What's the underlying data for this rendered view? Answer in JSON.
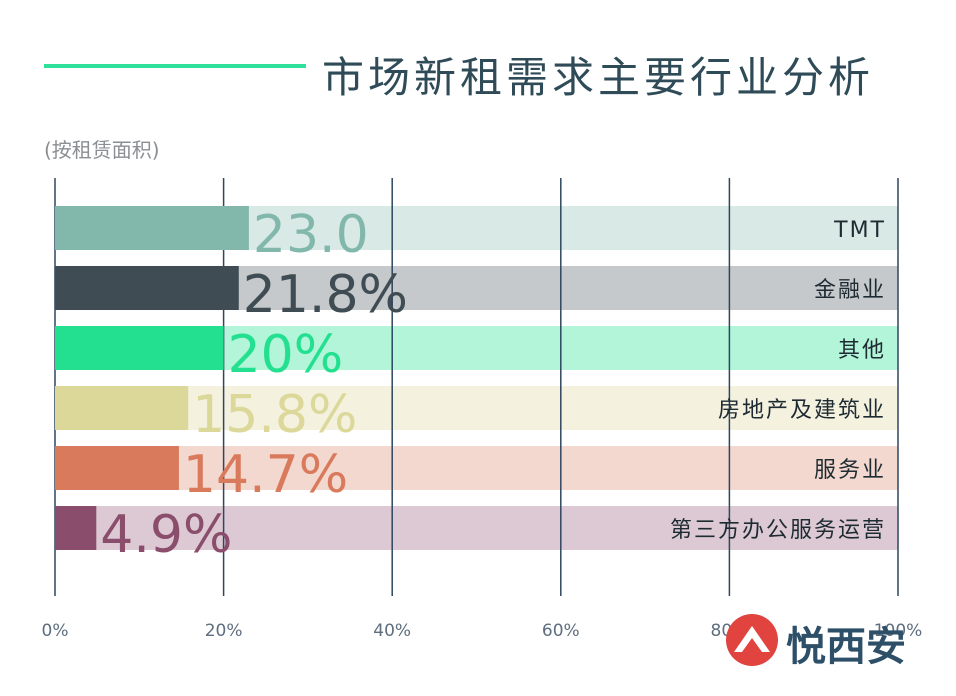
{
  "title": "市场新租需求主要行业分析",
  "subtitle": "(按租赁面积)",
  "watermark": {
    "text": "悦西安"
  },
  "colors": {
    "title_line": "#2fe09a",
    "grid": "#2e4660",
    "axis_text": "#5e6e7e"
  },
  "chart_data": {
    "type": "bar",
    "orientation": "horizontal",
    "xlim": [
      0,
      100
    ],
    "xticks": [
      "0%",
      "20%",
      "40%",
      "60%",
      "80%",
      "100%"
    ],
    "categories": [
      "TMT",
      "金融业",
      "其他",
      "房地产及建筑业",
      "服务业",
      "第三方办公服务运营"
    ],
    "values": [
      23.0,
      21.8,
      20,
      15.8,
      14.7,
      4.9
    ],
    "value_labels": [
      "23.0",
      "21.8%",
      "20%",
      "15.8%",
      "14.7%",
      "4.9%"
    ],
    "bar_colors": [
      "#82b8ac",
      "#3f4c53",
      "#22e08f",
      "#dcd89a",
      "#d97a5c",
      "#8a4e6c"
    ],
    "track_colors": [
      "#d9e9e5",
      "#c5c9cb",
      "#b2f5d8",
      "#f4f1df",
      "#f3d8cf",
      "#dcc9d4"
    ],
    "grid": true
  }
}
